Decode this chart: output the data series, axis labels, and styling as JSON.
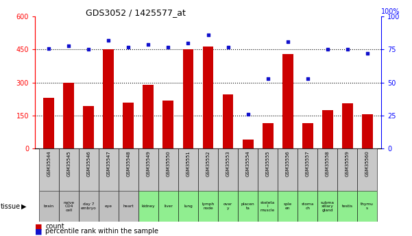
{
  "title": "GDS3052 / 1425577_at",
  "samples": [
    "GSM35544",
    "GSM35545",
    "GSM35546",
    "GSM35547",
    "GSM35548",
    "GSM35549",
    "GSM35550",
    "GSM35551",
    "GSM35552",
    "GSM35553",
    "GSM35554",
    "GSM35555",
    "GSM35556",
    "GSM35557",
    "GSM35558",
    "GSM35559",
    "GSM35560"
  ],
  "tissues": [
    "brain",
    "naive\nCD4\ncell",
    "day 7\nembryо",
    "eye",
    "heart",
    "kidney",
    "liver",
    "lung",
    "lymph\nnode",
    "оvar\ny",
    "placen\nta",
    "skeleta\nl\nmuscle",
    "sple\nen",
    "stoma\nch",
    "subma\nxillary\ngland",
    "testis",
    "thymu\ns"
  ],
  "tissue_colors": [
    "#c0c0c0",
    "#c0c0c0",
    "#c0c0c0",
    "#c0c0c0",
    "#c0c0c0",
    "#90ee90",
    "#90ee90",
    "#90ee90",
    "#90ee90",
    "#90ee90",
    "#90ee90",
    "#90ee90",
    "#90ee90",
    "#90ee90",
    "#90ee90",
    "#90ee90",
    "#90ee90"
  ],
  "counts": [
    230,
    300,
    195,
    450,
    210,
    290,
    220,
    450,
    465,
    245,
    40,
    115,
    430,
    115,
    175,
    205,
    155
  ],
  "percentiles": [
    76,
    78,
    75,
    82,
    77,
    79,
    77,
    80,
    86,
    77,
    26,
    53,
    81,
    53,
    75,
    75,
    72
  ],
  "bar_color": "#cc0000",
  "dot_color": "#1111cc",
  "ylim_left": [
    0,
    600
  ],
  "ylim_right": [
    0,
    100
  ],
  "yticks_left": [
    0,
    150,
    300,
    450,
    600
  ],
  "yticks_right": [
    0,
    25,
    50,
    75,
    100
  ],
  "hlines": [
    150,
    300,
    450
  ],
  "bar_width": 0.55,
  "right_yaxis_label": "100%"
}
